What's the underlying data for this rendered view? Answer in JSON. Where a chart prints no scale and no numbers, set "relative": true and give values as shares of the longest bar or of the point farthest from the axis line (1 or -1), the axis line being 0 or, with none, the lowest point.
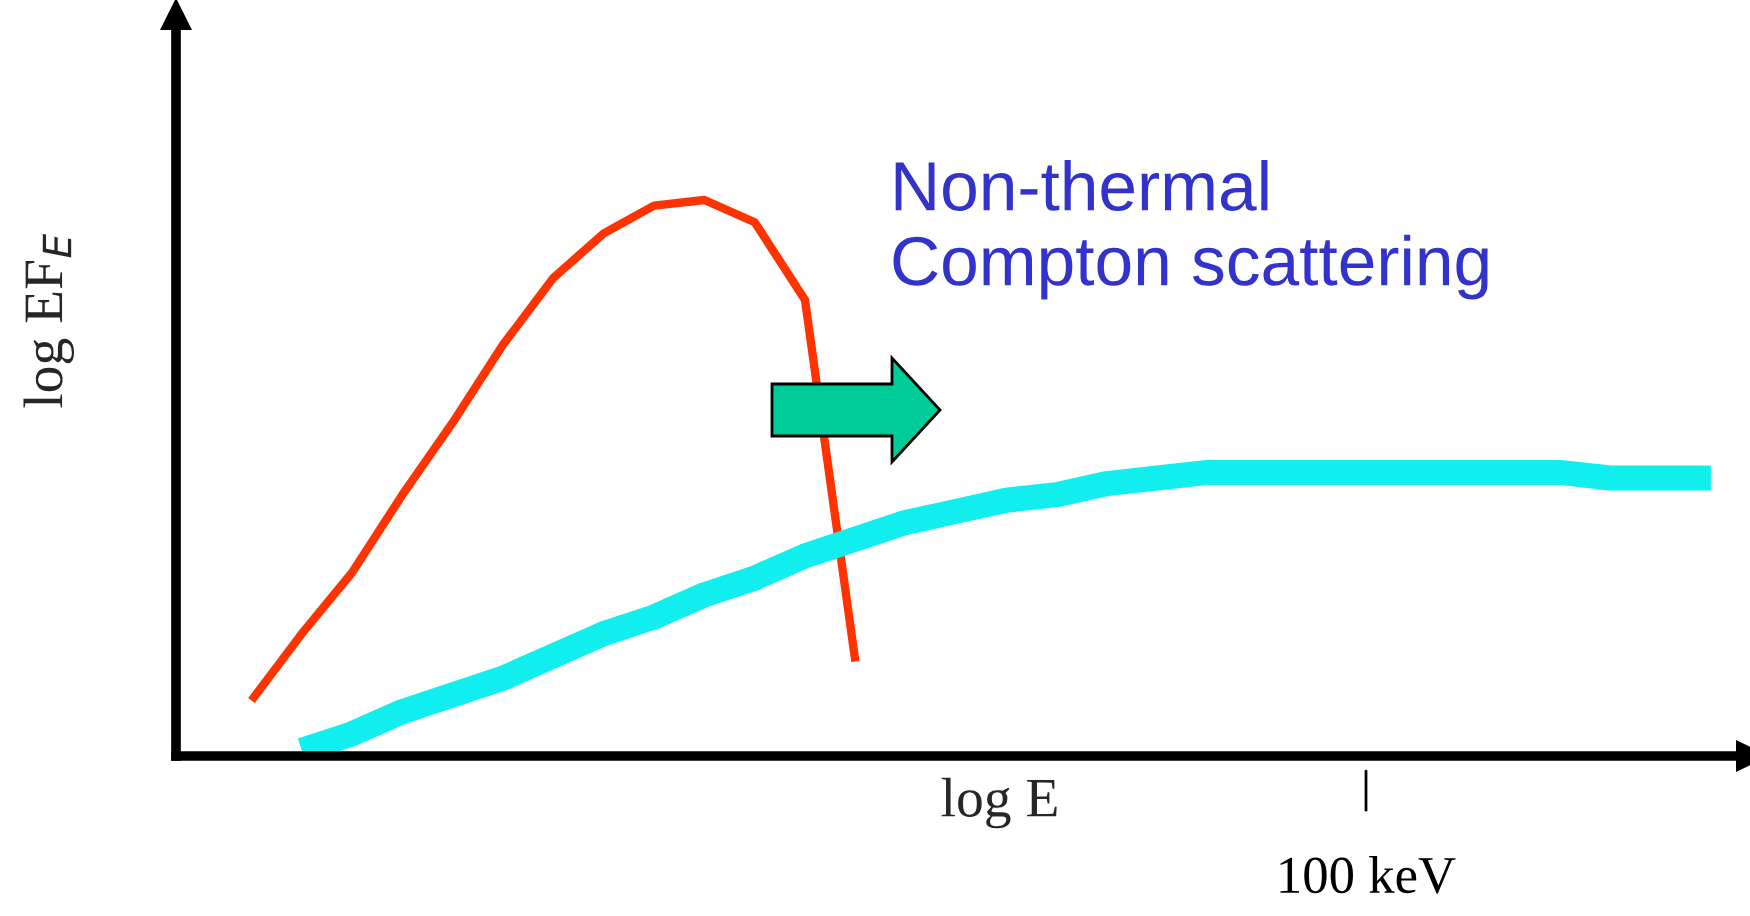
{
  "chart_data": {
    "type": "line",
    "relative": true,
    "xlabel": "log E",
    "ylabel": "log EF$_{E}$",
    "categories": [
      null,
      null,
      null,
      null,
      null,
      null,
      null,
      null,
      null,
      null,
      null,
      null,
      null,
      null,
      null,
      null,
      null,
      null,
      null,
      null,
      null,
      null,
      null,
      null,
      null,
      null,
      null,
      null,
      null,
      null,
      null
    ],
    "series": [
      {
        "color": "#ff3300",
        "values": [
          null,
          0.1,
          0.22,
          0.33,
          0.47,
          0.6,
          0.74,
          0.86,
          0.94,
          0.99,
          1.0,
          0.96,
          0.82,
          0.17,
          null,
          null,
          null,
          null,
          null,
          null,
          null,
          null,
          null,
          null,
          null,
          null,
          null,
          null,
          null,
          null,
          null
        ]
      },
      {
        "color": "#11eeee",
        "values": [
          null,
          null,
          0.01,
          0.04,
          0.08,
          0.11,
          0.14,
          0.18,
          0.22,
          0.25,
          0.29,
          0.32,
          0.36,
          0.39,
          0.42,
          0.44,
          0.46,
          0.47,
          0.49,
          0.5,
          0.51,
          0.51,
          0.51,
          0.51,
          0.51,
          0.51,
          0.51,
          0.51,
          0.5,
          0.5,
          0.5
        ]
      }
    ],
    "annotations": [
      "Non-thermal\nCompton scattering",
      "100 keV"
    ],
    "legend": false,
    "grid": false
  }
}
